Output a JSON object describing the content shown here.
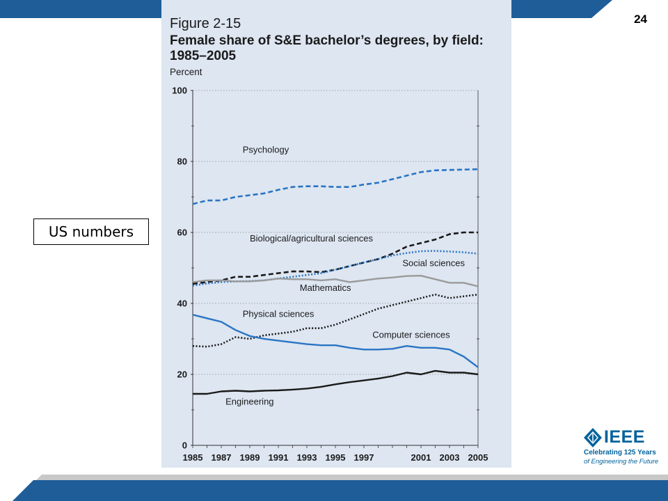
{
  "slide": {
    "page_number": "24",
    "callout": "US numbers",
    "colors": {
      "bar_blue": "#1f5d99",
      "bar_gray": "#c8c8c8",
      "panel_bg": "#dde6f1"
    }
  },
  "logo": {
    "name": "IEEE",
    "line1": "Celebrating 125 Years",
    "line2": "of Engineering the Future"
  },
  "chart_data": {
    "type": "line",
    "figure_number": "Figure 2-15",
    "title": "Female share of S&E bachelor’s degrees, by field: 1985–2005",
    "ylabel": "Percent",
    "ylim": [
      0,
      100
    ],
    "yticks": [
      0,
      20,
      40,
      60,
      80,
      100
    ],
    "xlim": [
      1985,
      2005
    ],
    "xticks": [
      1985,
      1987,
      1989,
      1991,
      1993,
      1995,
      1997,
      2001,
      2003,
      2005
    ],
    "x": [
      1985,
      1986,
      1987,
      1988,
      1989,
      1990,
      1991,
      1992,
      1993,
      1994,
      1995,
      1996,
      1997,
      1998,
      1999,
      2000,
      2001,
      2002,
      2003,
      2004,
      2005
    ],
    "series": [
      {
        "name": "Psychology",
        "style": "dashed",
        "color": "#2a74c4",
        "values": [
          68,
          69,
          69,
          70,
          70.5,
          71,
          72,
          72.8,
          73,
          73,
          72.8,
          72.8,
          73.5,
          74,
          75,
          76,
          77,
          77.5,
          77.6,
          77.7,
          77.8
        ]
      },
      {
        "name": "Biological/agricultural sciences",
        "style": "dashed",
        "color": "#1a1a1a",
        "values": [
          45.5,
          46,
          46.5,
          47.5,
          47.5,
          48,
          48.5,
          49,
          49,
          48.8,
          49.5,
          50.5,
          51.5,
          52.5,
          54,
          56,
          57,
          58,
          59.5,
          60,
          60
        ]
      },
      {
        "name": "Social sciences",
        "style": "dotted",
        "color": "#2a74c4",
        "values": [
          45,
          45.6,
          46,
          46.2,
          46.3,
          46.5,
          47,
          47.5,
          48,
          48.5,
          49.5,
          50.5,
          51.5,
          52.5,
          53.5,
          54.2,
          54.7,
          54.8,
          54.6,
          54.4,
          54
        ]
      },
      {
        "name": "Mathematics",
        "style": "solid",
        "color": "#9a9a9a",
        "values": [
          46,
          46.5,
          46.5,
          46.2,
          46.2,
          46.5,
          47,
          46.8,
          46.8,
          46.5,
          46.8,
          46,
          46.5,
          47,
          47.3,
          47.7,
          47.8,
          46.8,
          45.8,
          45.8,
          44.8
        ]
      },
      {
        "name": "Physical sciences",
        "style": "dotted",
        "color": "#1a1a1a",
        "values": [
          28,
          27.8,
          28.5,
          30.5,
          30,
          31,
          31.5,
          32,
          33,
          33,
          34,
          35.5,
          37,
          38.5,
          39.5,
          40.5,
          41.5,
          42.5,
          41.5,
          42,
          42.5
        ]
      },
      {
        "name": "Computer sciences",
        "style": "solid",
        "color": "#2a74c4",
        "values": [
          36.8,
          35.8,
          34.8,
          32.5,
          30.8,
          30,
          29.5,
          29,
          28.5,
          28.2,
          28.2,
          27.5,
          27,
          27,
          27.2,
          28,
          27.5,
          27.5,
          27,
          25,
          22
        ]
      },
      {
        "name": "Engineering",
        "style": "solid",
        "color": "#1a1a1a",
        "values": [
          14.5,
          14.5,
          15.2,
          15.4,
          15.2,
          15.4,
          15.5,
          15.7,
          16,
          16.5,
          17.2,
          17.8,
          18.3,
          18.8,
          19.5,
          20.5,
          20,
          21,
          20.5,
          20.5,
          20
        ]
      }
    ]
  }
}
